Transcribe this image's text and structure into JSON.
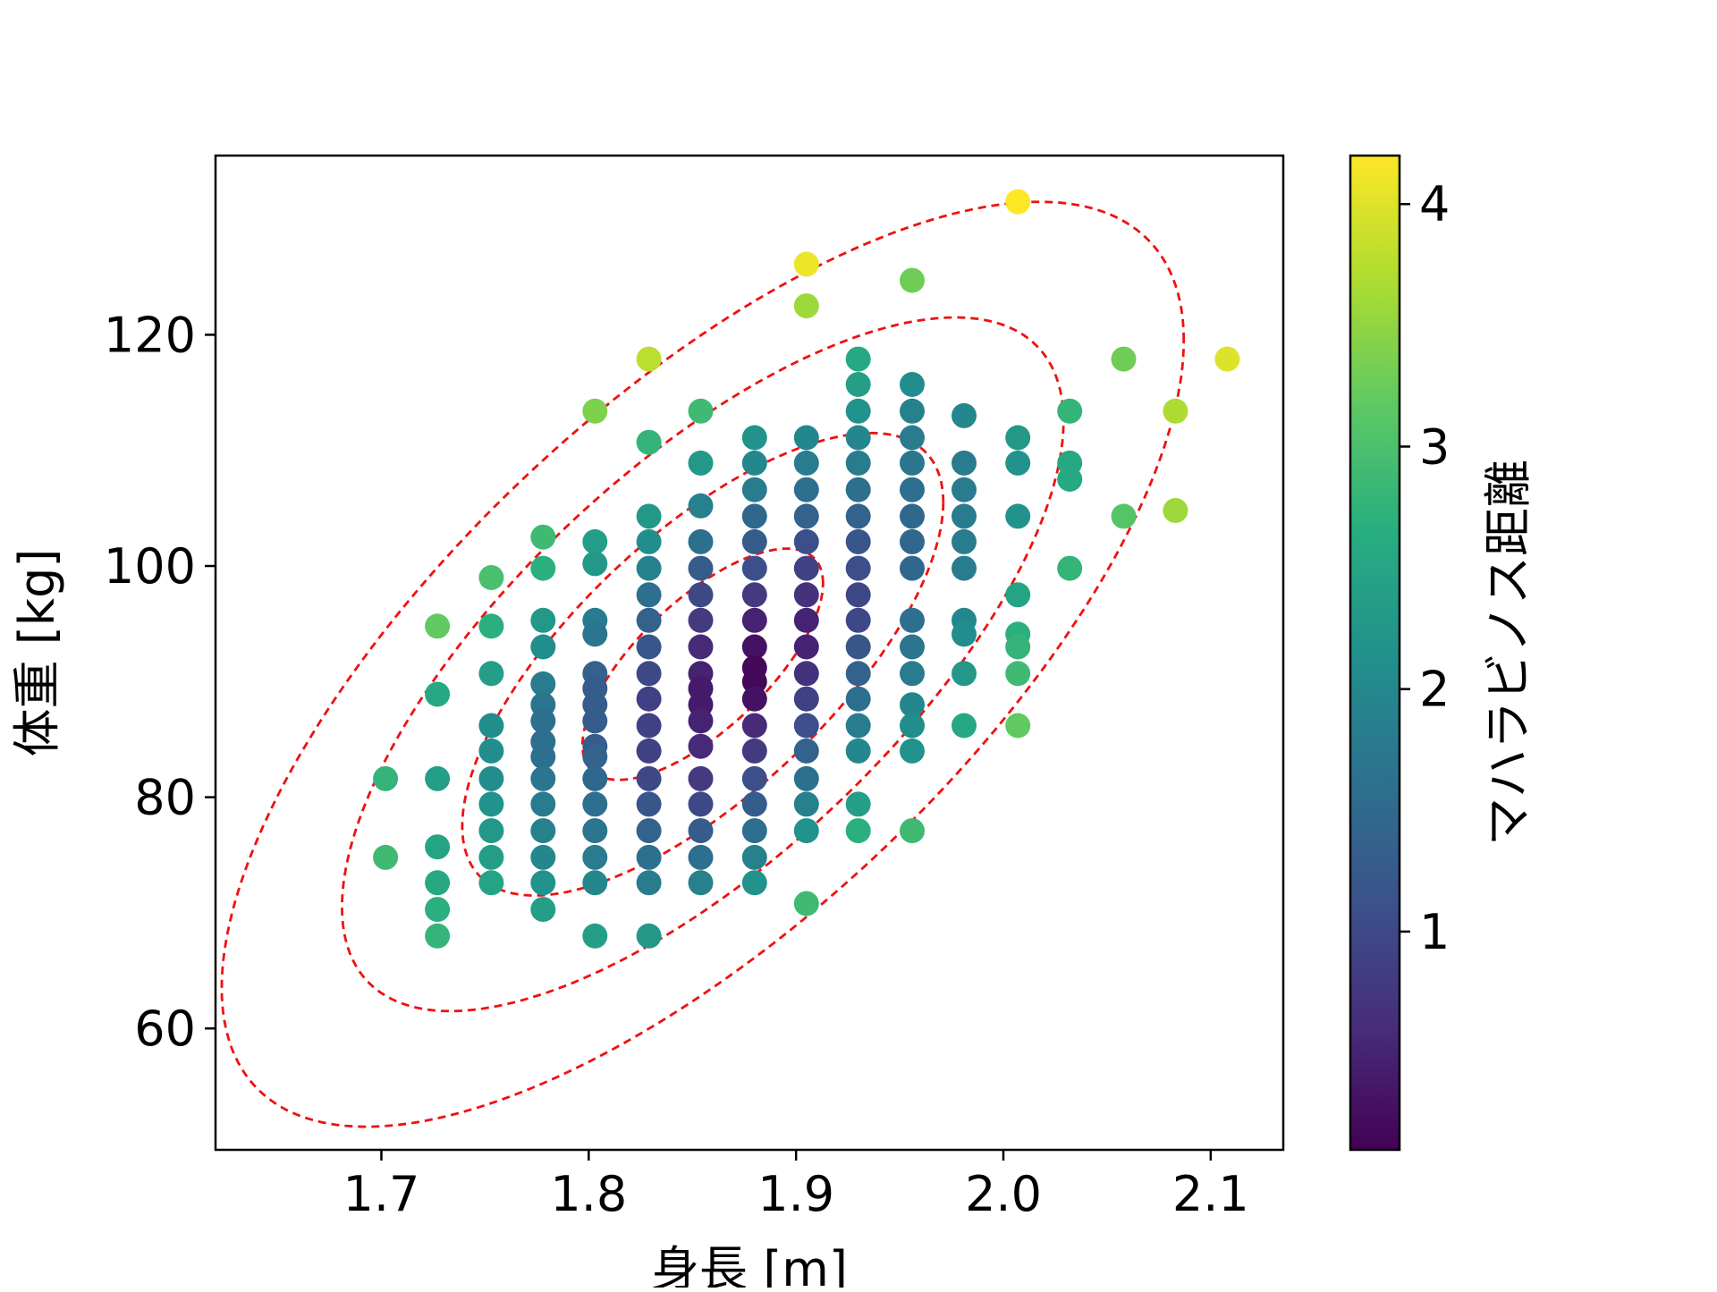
{
  "chart_data": {
    "type": "scatter",
    "xlabel": "身長 [m]",
    "ylabel": "体重 [kg]",
    "colorbar_label": "マハラビノス距離",
    "colormap": "viridis",
    "xlim": [
      1.62,
      2.135
    ],
    "ylim": [
      49.5,
      135.5
    ],
    "clim": [
      0.1,
      4.2
    ],
    "x_ticks": [
      1.7,
      1.8,
      1.9,
      2.0,
      2.1
    ],
    "x_tick_labels": [
      "1.7",
      "1.8",
      "1.9",
      "2.0",
      "2.1"
    ],
    "y_ticks": [
      60,
      80,
      100,
      120
    ],
    "y_tick_labels": [
      "60",
      "80",
      "100",
      "120"
    ],
    "colorbar_ticks": [
      1,
      2,
      3,
      4
    ],
    "colorbar_tick_labels": [
      "1",
      "2",
      "3",
      "4"
    ],
    "contour_color": "#ee1111",
    "contours": [
      {
        "mahalanobis": 1,
        "cx": 1.855,
        "cy": 91.5,
        "rx": 0.058,
        "ry": 10.0,
        "tilt": 0.7
      },
      {
        "mahalanobis": 2,
        "cx": 1.855,
        "cy": 91.5,
        "rx": 0.116,
        "ry": 20.0,
        "tilt": 0.7
      },
      {
        "mahalanobis": 3,
        "cx": 1.855,
        "cy": 91.5,
        "rx": 0.174,
        "ry": 30.0,
        "tilt": 0.7
      },
      {
        "mahalanobis": 4,
        "cx": 1.855,
        "cy": 91.5,
        "rx": 0.232,
        "ry": 40.0,
        "tilt": 0.7
      }
    ],
    "points": [
      {
        "x": 1.702,
        "y": 81.6,
        "d": 2.8
      },
      {
        "x": 1.702,
        "y": 74.8,
        "d": 2.9
      },
      {
        "x": 1.727,
        "y": 94.8,
        "d": 3.2
      },
      {
        "x": 1.727,
        "y": 88.9,
        "d": 2.6
      },
      {
        "x": 1.727,
        "y": 81.6,
        "d": 2.4
      },
      {
        "x": 1.727,
        "y": 75.7,
        "d": 2.5
      },
      {
        "x": 1.727,
        "y": 72.6,
        "d": 2.6
      },
      {
        "x": 1.727,
        "y": 70.3,
        "d": 2.7
      },
      {
        "x": 1.727,
        "y": 68.0,
        "d": 2.8
      },
      {
        "x": 1.753,
        "y": 99.0,
        "d": 3.0
      },
      {
        "x": 1.753,
        "y": 94.8,
        "d": 2.7
      },
      {
        "x": 1.753,
        "y": 90.7,
        "d": 2.4
      },
      {
        "x": 1.753,
        "y": 86.2,
        "d": 2.1
      },
      {
        "x": 1.753,
        "y": 84.0,
        "d": 2.1
      },
      {
        "x": 1.753,
        "y": 81.6,
        "d": 2.1
      },
      {
        "x": 1.753,
        "y": 79.4,
        "d": 2.2
      },
      {
        "x": 1.753,
        "y": 77.1,
        "d": 2.3
      },
      {
        "x": 1.753,
        "y": 74.8,
        "d": 2.4
      },
      {
        "x": 1.753,
        "y": 72.6,
        "d": 2.5
      },
      {
        "x": 1.778,
        "y": 102.5,
        "d": 2.9
      },
      {
        "x": 1.778,
        "y": 99.8,
        "d": 2.7
      },
      {
        "x": 1.778,
        "y": 95.3,
        "d": 2.3
      },
      {
        "x": 1.778,
        "y": 93.0,
        "d": 2.1
      },
      {
        "x": 1.778,
        "y": 89.8,
        "d": 1.8
      },
      {
        "x": 1.778,
        "y": 88.0,
        "d": 1.7
      },
      {
        "x": 1.778,
        "y": 86.6,
        "d": 1.6
      },
      {
        "x": 1.778,
        "y": 84.8,
        "d": 1.6
      },
      {
        "x": 1.778,
        "y": 83.5,
        "d": 1.6
      },
      {
        "x": 1.778,
        "y": 81.6,
        "d": 1.7
      },
      {
        "x": 1.778,
        "y": 79.4,
        "d": 1.8
      },
      {
        "x": 1.778,
        "y": 77.1,
        "d": 1.9
      },
      {
        "x": 1.778,
        "y": 74.8,
        "d": 2.0
      },
      {
        "x": 1.778,
        "y": 72.6,
        "d": 2.2
      },
      {
        "x": 1.778,
        "y": 70.3,
        "d": 2.4
      },
      {
        "x": 1.803,
        "y": 113.4,
        "d": 3.4
      },
      {
        "x": 1.803,
        "y": 102.1,
        "d": 2.4
      },
      {
        "x": 1.803,
        "y": 100.2,
        "d": 2.3
      },
      {
        "x": 1.803,
        "y": 95.3,
        "d": 1.8
      },
      {
        "x": 1.803,
        "y": 94.1,
        "d": 1.7
      },
      {
        "x": 1.803,
        "y": 90.7,
        "d": 1.4
      },
      {
        "x": 1.803,
        "y": 89.4,
        "d": 1.3
      },
      {
        "x": 1.803,
        "y": 88.0,
        "d": 1.3
      },
      {
        "x": 1.803,
        "y": 86.6,
        "d": 1.3
      },
      {
        "x": 1.803,
        "y": 84.4,
        "d": 1.3
      },
      {
        "x": 1.803,
        "y": 83.5,
        "d": 1.4
      },
      {
        "x": 1.803,
        "y": 81.6,
        "d": 1.5
      },
      {
        "x": 1.803,
        "y": 79.4,
        "d": 1.6
      },
      {
        "x": 1.803,
        "y": 77.1,
        "d": 1.7
      },
      {
        "x": 1.803,
        "y": 74.8,
        "d": 1.8
      },
      {
        "x": 1.803,
        "y": 72.6,
        "d": 2.0
      },
      {
        "x": 1.803,
        "y": 68.0,
        "d": 2.4
      },
      {
        "x": 1.829,
        "y": 117.9,
        "d": 3.8
      },
      {
        "x": 1.829,
        "y": 110.7,
        "d": 2.8
      },
      {
        "x": 1.829,
        "y": 104.3,
        "d": 2.3
      },
      {
        "x": 1.829,
        "y": 102.1,
        "d": 2.1
      },
      {
        "x": 1.829,
        "y": 99.8,
        "d": 1.9
      },
      {
        "x": 1.829,
        "y": 97.5,
        "d": 1.6
      },
      {
        "x": 1.829,
        "y": 95.3,
        "d": 1.4
      },
      {
        "x": 1.829,
        "y": 93.0,
        "d": 1.2
      },
      {
        "x": 1.829,
        "y": 90.7,
        "d": 1.0
      },
      {
        "x": 1.829,
        "y": 88.5,
        "d": 0.9
      },
      {
        "x": 1.829,
        "y": 86.2,
        "d": 0.9
      },
      {
        "x": 1.829,
        "y": 84.0,
        "d": 0.9
      },
      {
        "x": 1.829,
        "y": 81.6,
        "d": 1.0
      },
      {
        "x": 1.829,
        "y": 79.4,
        "d": 1.2
      },
      {
        "x": 1.829,
        "y": 77.1,
        "d": 1.4
      },
      {
        "x": 1.829,
        "y": 74.8,
        "d": 1.6
      },
      {
        "x": 1.829,
        "y": 72.6,
        "d": 1.8
      },
      {
        "x": 1.829,
        "y": 68.0,
        "d": 2.3
      },
      {
        "x": 1.854,
        "y": 113.4,
        "d": 2.9
      },
      {
        "x": 1.854,
        "y": 108.9,
        "d": 2.3
      },
      {
        "x": 1.854,
        "y": 105.2,
        "d": 1.9
      },
      {
        "x": 1.854,
        "y": 102.1,
        "d": 1.6
      },
      {
        "x": 1.854,
        "y": 99.8,
        "d": 1.3
      },
      {
        "x": 1.854,
        "y": 97.5,
        "d": 1.0
      },
      {
        "x": 1.854,
        "y": 95.3,
        "d": 0.8
      },
      {
        "x": 1.854,
        "y": 93.0,
        "d": 0.6
      },
      {
        "x": 1.854,
        "y": 90.7,
        "d": 0.5
      },
      {
        "x": 1.854,
        "y": 89.4,
        "d": 0.4
      },
      {
        "x": 1.854,
        "y": 88.0,
        "d": 0.4
      },
      {
        "x": 1.854,
        "y": 86.6,
        "d": 0.5
      },
      {
        "x": 1.854,
        "y": 84.4,
        "d": 0.6
      },
      {
        "x": 1.854,
        "y": 81.6,
        "d": 0.8
      },
      {
        "x": 1.854,
        "y": 79.4,
        "d": 1.0
      },
      {
        "x": 1.854,
        "y": 77.1,
        "d": 1.3
      },
      {
        "x": 1.854,
        "y": 74.8,
        "d": 1.6
      },
      {
        "x": 1.854,
        "y": 72.6,
        "d": 1.9
      },
      {
        "x": 1.88,
        "y": 111.1,
        "d": 2.2
      },
      {
        "x": 1.88,
        "y": 108.9,
        "d": 2.0
      },
      {
        "x": 1.88,
        "y": 106.6,
        "d": 1.8
      },
      {
        "x": 1.88,
        "y": 104.3,
        "d": 1.5
      },
      {
        "x": 1.88,
        "y": 102.1,
        "d": 1.3
      },
      {
        "x": 1.88,
        "y": 99.8,
        "d": 1.1
      },
      {
        "x": 1.88,
        "y": 97.5,
        "d": 0.8
      },
      {
        "x": 1.88,
        "y": 95.3,
        "d": 0.5
      },
      {
        "x": 1.88,
        "y": 93.0,
        "d": 0.3
      },
      {
        "x": 1.88,
        "y": 91.2,
        "d": 0.2
      },
      {
        "x": 1.88,
        "y": 90.0,
        "d": 0.2
      },
      {
        "x": 1.88,
        "y": 88.5,
        "d": 0.3
      },
      {
        "x": 1.88,
        "y": 86.2,
        "d": 0.6
      },
      {
        "x": 1.88,
        "y": 84.0,
        "d": 0.8
      },
      {
        "x": 1.88,
        "y": 81.6,
        "d": 1.1
      },
      {
        "x": 1.88,
        "y": 79.4,
        "d": 1.3
      },
      {
        "x": 1.88,
        "y": 77.1,
        "d": 1.6
      },
      {
        "x": 1.88,
        "y": 74.8,
        "d": 1.9
      },
      {
        "x": 1.88,
        "y": 72.6,
        "d": 2.2
      },
      {
        "x": 1.905,
        "y": 126.1,
        "d": 4.1
      },
      {
        "x": 1.905,
        "y": 122.5,
        "d": 3.6
      },
      {
        "x": 1.905,
        "y": 111.1,
        "d": 2.0
      },
      {
        "x": 1.905,
        "y": 108.9,
        "d": 1.8
      },
      {
        "x": 1.905,
        "y": 106.6,
        "d": 1.6
      },
      {
        "x": 1.905,
        "y": 104.3,
        "d": 1.4
      },
      {
        "x": 1.905,
        "y": 102.1,
        "d": 1.1
      },
      {
        "x": 1.905,
        "y": 99.8,
        "d": 0.9
      },
      {
        "x": 1.905,
        "y": 97.5,
        "d": 0.7
      },
      {
        "x": 1.905,
        "y": 95.3,
        "d": 0.5
      },
      {
        "x": 1.905,
        "y": 93.0,
        "d": 0.5
      },
      {
        "x": 1.905,
        "y": 90.7,
        "d": 0.7
      },
      {
        "x": 1.905,
        "y": 88.5,
        "d": 0.9
      },
      {
        "x": 1.905,
        "y": 86.2,
        "d": 1.1
      },
      {
        "x": 1.905,
        "y": 84.0,
        "d": 1.4
      },
      {
        "x": 1.905,
        "y": 81.6,
        "d": 1.6
      },
      {
        "x": 1.905,
        "y": 79.4,
        "d": 1.9
      },
      {
        "x": 1.905,
        "y": 77.1,
        "d": 2.2
      },
      {
        "x": 1.905,
        "y": 70.8,
        "d": 2.9
      },
      {
        "x": 1.93,
        "y": 117.9,
        "d": 2.6
      },
      {
        "x": 1.93,
        "y": 115.7,
        "d": 2.4
      },
      {
        "x": 1.93,
        "y": 113.4,
        "d": 2.2
      },
      {
        "x": 1.93,
        "y": 111.1,
        "d": 2.0
      },
      {
        "x": 1.93,
        "y": 108.9,
        "d": 1.8
      },
      {
        "x": 1.93,
        "y": 106.6,
        "d": 1.6
      },
      {
        "x": 1.93,
        "y": 104.3,
        "d": 1.4
      },
      {
        "x": 1.93,
        "y": 102.1,
        "d": 1.2
      },
      {
        "x": 1.93,
        "y": 99.8,
        "d": 1.1
      },
      {
        "x": 1.93,
        "y": 97.5,
        "d": 1.0
      },
      {
        "x": 1.93,
        "y": 95.3,
        "d": 1.0
      },
      {
        "x": 1.93,
        "y": 93.0,
        "d": 1.2
      },
      {
        "x": 1.93,
        "y": 90.7,
        "d": 1.4
      },
      {
        "x": 1.93,
        "y": 88.5,
        "d": 1.6
      },
      {
        "x": 1.93,
        "y": 86.2,
        "d": 1.8
      },
      {
        "x": 1.93,
        "y": 84.0,
        "d": 2.0
      },
      {
        "x": 1.93,
        "y": 79.4,
        "d": 2.4
      },
      {
        "x": 1.93,
        "y": 77.1,
        "d": 2.7
      },
      {
        "x": 1.956,
        "y": 124.7,
        "d": 3.3
      },
      {
        "x": 1.956,
        "y": 115.7,
        "d": 2.1
      },
      {
        "x": 1.956,
        "y": 113.4,
        "d": 1.9
      },
      {
        "x": 1.956,
        "y": 111.1,
        "d": 1.8
      },
      {
        "x": 1.956,
        "y": 108.9,
        "d": 1.7
      },
      {
        "x": 1.956,
        "y": 106.6,
        "d": 1.6
      },
      {
        "x": 1.956,
        "y": 104.3,
        "d": 1.5
      },
      {
        "x": 1.956,
        "y": 102.1,
        "d": 1.5
      },
      {
        "x": 1.956,
        "y": 99.8,
        "d": 1.5
      },
      {
        "x": 1.956,
        "y": 95.3,
        "d": 1.6
      },
      {
        "x": 1.956,
        "y": 93.0,
        "d": 1.7
      },
      {
        "x": 1.956,
        "y": 90.7,
        "d": 1.8
      },
      {
        "x": 1.956,
        "y": 88.0,
        "d": 2.0
      },
      {
        "x": 1.956,
        "y": 86.2,
        "d": 2.1
      },
      {
        "x": 1.956,
        "y": 84.0,
        "d": 2.2
      },
      {
        "x": 1.956,
        "y": 77.1,
        "d": 2.9
      },
      {
        "x": 1.981,
        "y": 113.0,
        "d": 2.0
      },
      {
        "x": 1.981,
        "y": 108.9,
        "d": 1.8
      },
      {
        "x": 1.981,
        "y": 106.6,
        "d": 1.8
      },
      {
        "x": 1.981,
        "y": 104.3,
        "d": 1.8
      },
      {
        "x": 1.981,
        "y": 102.1,
        "d": 1.8
      },
      {
        "x": 1.981,
        "y": 99.8,
        "d": 1.8
      },
      {
        "x": 1.981,
        "y": 95.3,
        "d": 2.0
      },
      {
        "x": 1.981,
        "y": 94.1,
        "d": 2.1
      },
      {
        "x": 1.981,
        "y": 90.7,
        "d": 2.3
      },
      {
        "x": 1.981,
        "y": 86.2,
        "d": 2.6
      },
      {
        "x": 2.007,
        "y": 131.5,
        "d": 4.2
      },
      {
        "x": 2.007,
        "y": 111.1,
        "d": 2.3
      },
      {
        "x": 2.007,
        "y": 108.9,
        "d": 2.2
      },
      {
        "x": 2.007,
        "y": 104.3,
        "d": 2.2
      },
      {
        "x": 2.007,
        "y": 97.5,
        "d": 2.5
      },
      {
        "x": 2.007,
        "y": 94.1,
        "d": 2.7
      },
      {
        "x": 2.007,
        "y": 93.0,
        "d": 2.8
      },
      {
        "x": 2.007,
        "y": 90.7,
        "d": 2.9
      },
      {
        "x": 2.007,
        "y": 86.2,
        "d": 3.2
      },
      {
        "x": 2.032,
        "y": 113.4,
        "d": 2.8
      },
      {
        "x": 2.032,
        "y": 108.9,
        "d": 2.6
      },
      {
        "x": 2.032,
        "y": 107.5,
        "d": 2.6
      },
      {
        "x": 2.032,
        "y": 99.8,
        "d": 2.8
      },
      {
        "x": 2.058,
        "y": 117.9,
        "d": 3.3
      },
      {
        "x": 2.058,
        "y": 104.3,
        "d": 3.1
      },
      {
        "x": 2.083,
        "y": 113.4,
        "d": 3.7
      },
      {
        "x": 2.083,
        "y": 104.8,
        "d": 3.6
      },
      {
        "x": 2.108,
        "y": 117.9,
        "d": 4.0
      }
    ]
  }
}
